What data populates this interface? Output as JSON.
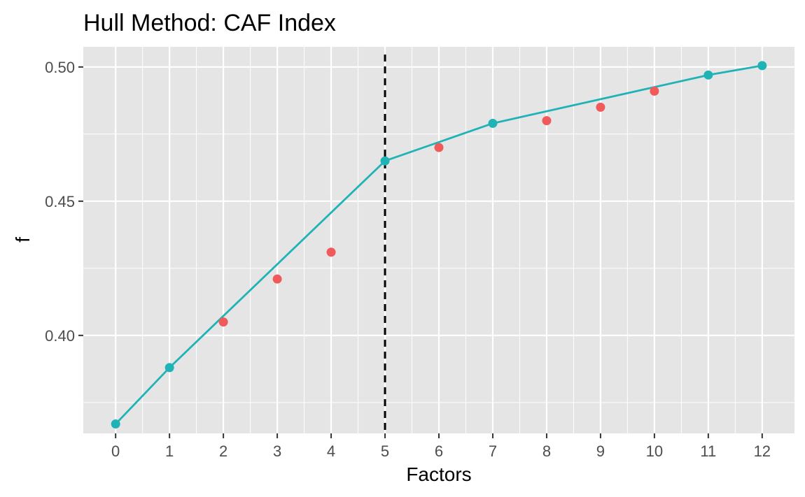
{
  "chart_data": {
    "type": "line",
    "title": "Hull Method: CAF Index",
    "xlabel": "Factors",
    "ylabel": "f",
    "xlim": [
      -0.6,
      12.6
    ],
    "ylim": [
      0.3635,
      0.5075
    ],
    "x_ticks": [
      0,
      1,
      2,
      3,
      4,
      5,
      6,
      7,
      8,
      9,
      10,
      11,
      12
    ],
    "y_ticks": [
      0.4,
      0.45,
      0.5
    ],
    "y_tick_labels": [
      "0.40",
      "0.45",
      "0.50"
    ],
    "grid": true,
    "legend": "none",
    "colors": {
      "panel_background": "#e5e5e5",
      "grid": "#ffffff",
      "hull": "#20b3b6",
      "off_hull": "#f05a5a",
      "reference_line": "#000000"
    },
    "reference_line": {
      "x": 5,
      "style": "dashed"
    },
    "series": [
      {
        "points": [
          {
            "x": 0,
            "y": 0.367
          },
          {
            "x": 1,
            "y": 0.388
          },
          {
            "x": 5,
            "y": 0.465
          },
          {
            "x": 7,
            "y": 0.479
          },
          {
            "x": 11,
            "y": 0.497
          },
          {
            "x": 12,
            "y": 0.5005
          }
        ],
        "line": true,
        "color": "#20b3b6"
      },
      {
        "points": [
          {
            "x": 2,
            "y": 0.405
          },
          {
            "x": 3,
            "y": 0.421
          },
          {
            "x": 4,
            "y": 0.431
          },
          {
            "x": 6,
            "y": 0.47
          },
          {
            "x": 8,
            "y": 0.48
          },
          {
            "x": 9,
            "y": 0.485
          },
          {
            "x": 10,
            "y": 0.491
          }
        ],
        "line": false,
        "color": "#f05a5a"
      }
    ]
  }
}
